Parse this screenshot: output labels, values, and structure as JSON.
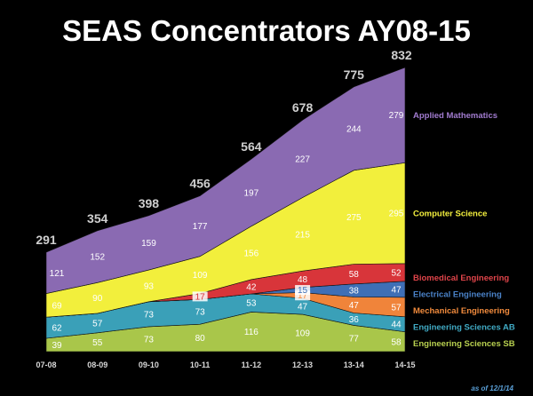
{
  "chart_data": {
    "type": "area",
    "stacked": true,
    "title": "SEAS Concentrators AY08-15",
    "categories": [
      "07-08",
      "08-09",
      "09-10",
      "10-11",
      "11-12",
      "12-13",
      "13-14",
      "14-15"
    ],
    "totals": [
      291,
      354,
      398,
      456,
      564,
      678,
      775,
      832
    ],
    "series": [
      {
        "name": "Engineering Sciences SB",
        "color": "#a9c64a",
        "labelColor": "#b8d04f",
        "values": [
          39,
          55,
          73,
          80,
          116,
          109,
          77,
          58
        ],
        "labels": [
          "39",
          "55",
          "73",
          "80",
          "116",
          "109",
          "77",
          "58"
        ]
      },
      {
        "name": "Engineering Sciences AB",
        "color": "#3aa0b8",
        "labelColor": "#40aac4",
        "values": [
          62,
          57,
          73,
          73,
          53,
          47,
          36,
          44
        ],
        "labels": [
          "62",
          "57",
          "73",
          "73",
          "53",
          "47",
          "36",
          "44"
        ]
      },
      {
        "name": "Mechanical Engineering",
        "color": "#f0843a",
        "labelColor": "#f08a3c",
        "values": [
          0,
          0,
          0,
          0,
          0,
          17,
          47,
          57
        ],
        "labels": [
          "",
          "",
          "",
          "",
          "",
          "17",
          "47",
          "57"
        ]
      },
      {
        "name": "Electrical Engineering",
        "color": "#3f6fb6",
        "labelColor": "#4a82c8",
        "values": [
          0,
          0,
          0,
          0,
          0,
          15,
          38,
          47
        ],
        "labels": [
          "",
          "",
          "",
          "",
          "",
          "15",
          "38",
          "47"
        ]
      },
      {
        "name": "Biomedical Engineering",
        "color": "#d8353a",
        "labelColor": "#e0444a",
        "values": [
          0,
          0,
          0,
          17,
          42,
          48,
          58,
          52
        ],
        "labels": [
          "",
          "",
          "",
          "17",
          "42",
          "48",
          "58",
          "52"
        ]
      },
      {
        "name": "Computer Science",
        "color": "#f2ef3c",
        "labelColor": "#f4f03e",
        "values": [
          69,
          90,
          93,
          109,
          156,
          215,
          275,
          295
        ],
        "labels": [
          "69",
          "90",
          "93",
          "109",
          "156",
          "215",
          "275",
          "295"
        ]
      },
      {
        "name": "Applied Mathematics",
        "color": "#8a6ab2",
        "labelColor": "#a27cd0",
        "values": [
          121,
          152,
          159,
          177,
          197,
          227,
          244,
          279
        ],
        "labels": [
          "121",
          "152",
          "159",
          "177",
          "197",
          "227",
          "244",
          "279"
        ]
      }
    ],
    "annotation": "as of 12/1/14",
    "ylim": [
      0,
      832
    ],
    "grid": false
  }
}
